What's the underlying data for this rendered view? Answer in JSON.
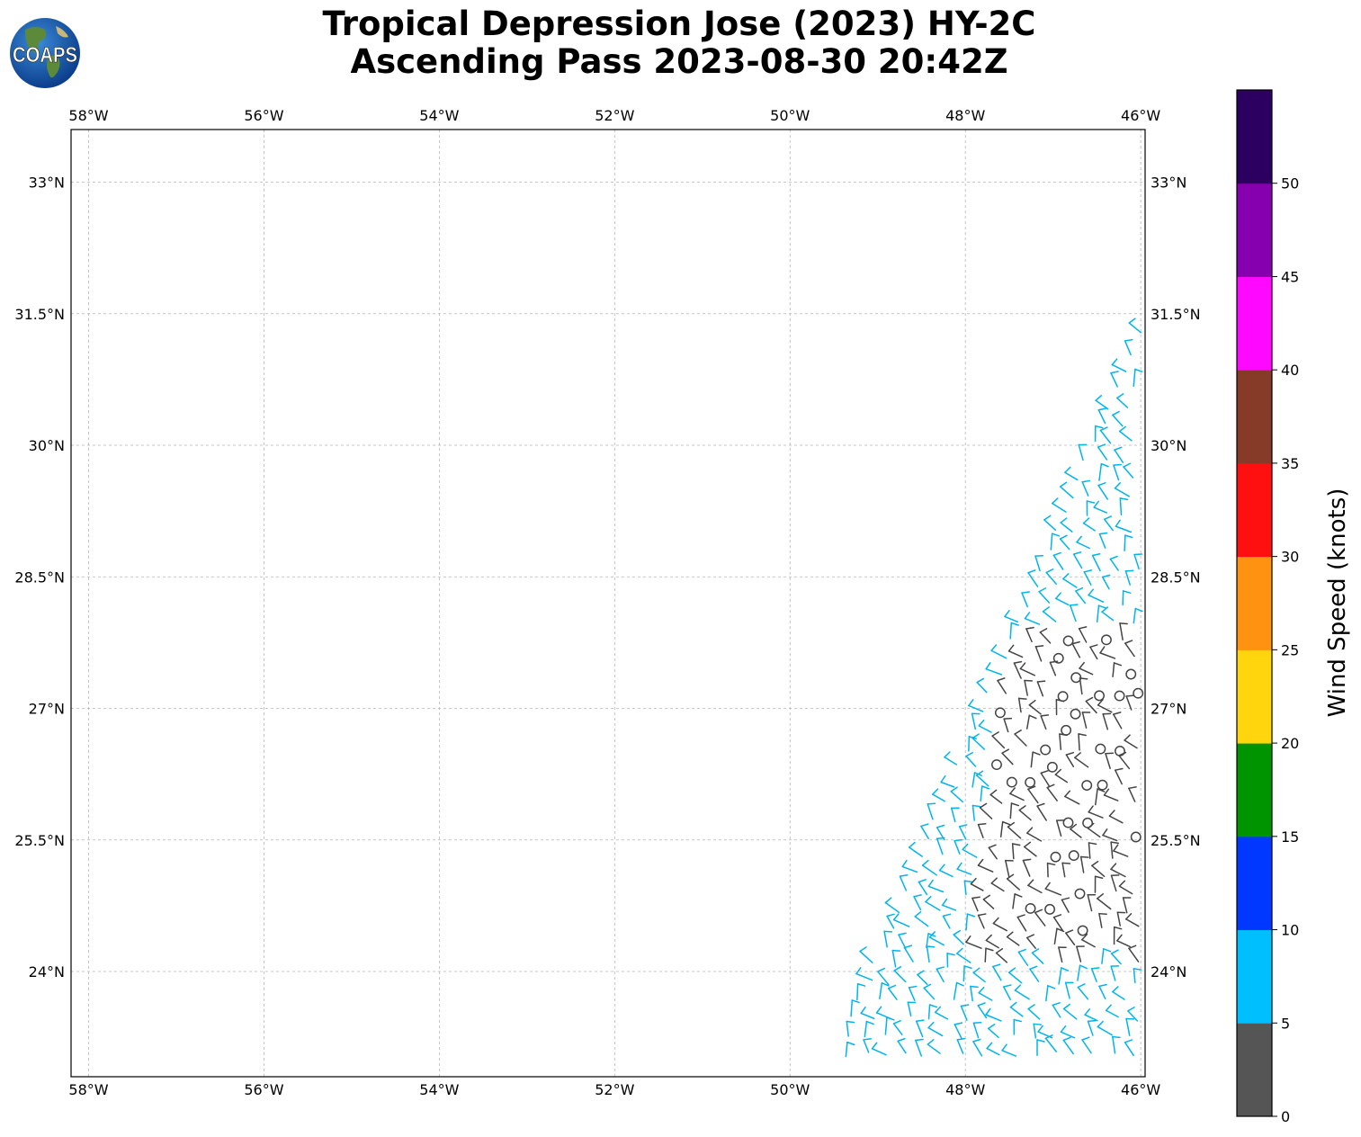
{
  "logo": {
    "text": "COAPS"
  },
  "title": {
    "line1": "Tropical Depression Jose (2023) HY-2C",
    "line2": "Ascending Pass 2023-08-30 20:42Z"
  },
  "map": {
    "lon_ticks": [
      "58°W",
      "56°W",
      "54°W",
      "52°W",
      "50°W",
      "48°W",
      "46°W"
    ],
    "lat_ticks": [
      "33°N",
      "31.5°N",
      "30°N",
      "28.5°N",
      "27°N",
      "25.5°N",
      "24°N"
    ],
    "lon_range": [
      -58.2,
      -45.95
    ],
    "lat_range": [
      22.8,
      33.6
    ],
    "grid": true
  },
  "colorbar": {
    "label": "Wind Speed (knots)",
    "ticks": [
      "0",
      "5",
      "10",
      "15",
      "20",
      "25",
      "30",
      "35",
      "40",
      "45",
      "50"
    ],
    "colors": [
      "#555555",
      "#00bfff",
      "#0038ff",
      "#009400",
      "#ffd60e",
      "#ff9210",
      "#ff1010",
      "#853b28",
      "#ff08ff",
      "#8600b0",
      "#2b0060"
    ]
  },
  "barb_colors": {
    "calm": "#444444",
    "light": "#00b4ee"
  }
}
